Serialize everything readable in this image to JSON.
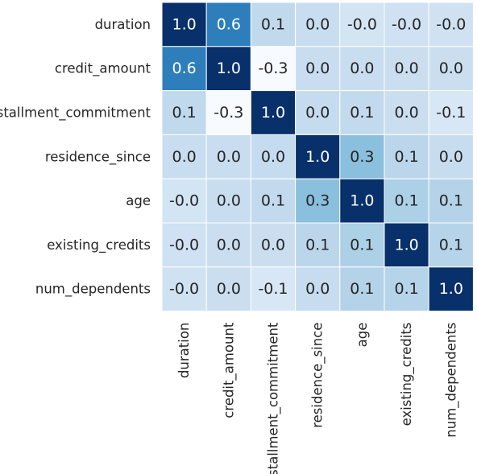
{
  "chart_data": {
    "type": "heatmap",
    "title": "",
    "xlabel": "",
    "ylabel": "",
    "row_labels": [
      "duration",
      "credit_amount",
      "installment_commitment",
      "residence_since",
      "age",
      "existing_credits",
      "num_dependents"
    ],
    "col_labels": [
      "duration",
      "credit_amount",
      "installment_commitment",
      "residence_since",
      "age",
      "existing_credits",
      "num_dependents"
    ],
    "values": [
      [
        1.0,
        0.62,
        0.07,
        0.03,
        -0.04,
        -0.01,
        -0.02
      ],
      [
        0.62,
        1.0,
        -0.27,
        0.03,
        0.03,
        0.02,
        0.02
      ],
      [
        0.07,
        -0.27,
        1.0,
        0.05,
        0.06,
        0.02,
        -0.07
      ],
      [
        0.03,
        0.03,
        0.05,
        1.0,
        0.27,
        0.09,
        0.04
      ],
      [
        -0.04,
        0.03,
        0.06,
        0.27,
        1.0,
        0.15,
        0.12
      ],
      [
        -0.01,
        0.02,
        0.02,
        0.09,
        0.15,
        1.0,
        0.11
      ],
      [
        -0.02,
        0.02,
        -0.07,
        0.04,
        0.12,
        0.11,
        1.0
      ]
    ],
    "cell_labels": [
      [
        "1.0",
        "0.6",
        "0.1",
        "0.0",
        "-0.0",
        "-0.0",
        "-0.0"
      ],
      [
        "0.6",
        "1.0",
        "-0.3",
        "0.0",
        "0.0",
        "0.0",
        "0.0"
      ],
      [
        "0.1",
        "-0.3",
        "1.0",
        "0.0",
        "0.1",
        "0.0",
        "-0.1"
      ],
      [
        "0.0",
        "0.0",
        "0.0",
        "1.0",
        "0.3",
        "0.1",
        "0.0"
      ],
      [
        "-0.0",
        "0.0",
        "0.1",
        "0.3",
        "1.0",
        "0.1",
        "0.1"
      ],
      [
        "-0.0",
        "0.0",
        "0.0",
        "0.1",
        "0.1",
        "1.0",
        "0.1"
      ],
      [
        "-0.0",
        "0.0",
        "-0.1",
        "0.0",
        "0.1",
        "0.1",
        "1.0"
      ]
    ],
    "colormap": "Blues",
    "value_range": [
      -0.27,
      1.0
    ],
    "colorbar": false,
    "grid": false,
    "annotations": true,
    "colors": {
      "low": "#f7fbff",
      "high": "#08306b",
      "cell_border": "#ffffff",
      "text_dark": "#262626",
      "text_light": "#ffffff"
    }
  }
}
